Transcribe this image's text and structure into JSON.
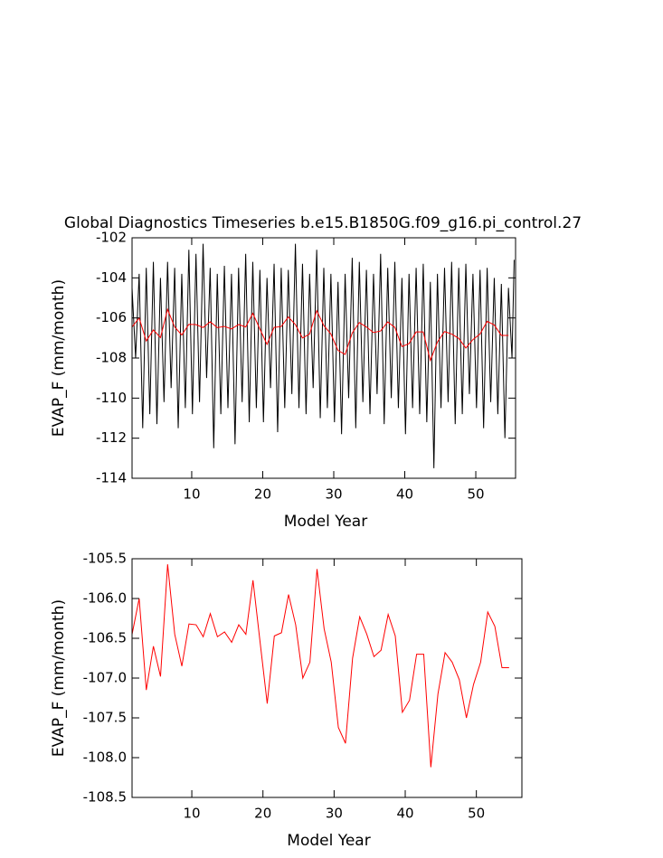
{
  "chart_data": [
    {
      "type": "line",
      "title": "Global Diagnostics Timeseries b.e15.B1850G.f09_g16.pi_control.27",
      "x_label": "Model Year",
      "y_label": "EVAP_F (mm/month)",
      "xlim": [
        1.6,
        55.6
      ],
      "ylim": [
        -114,
        -102
      ],
      "xticks": [
        10,
        20,
        30,
        40,
        50
      ],
      "yticks": [
        -114,
        -112,
        -110,
        -108,
        -106,
        -104,
        -102
      ],
      "series": [
        {
          "color": "#000000",
          "x": [
            1.6,
            2.1,
            2.6,
            3.1,
            3.6,
            4.1,
            4.6,
            5.1,
            5.6,
            6.1,
            6.6,
            7.1,
            7.6,
            8.1,
            8.6,
            9.1,
            9.6,
            10.1,
            10.6,
            11.1,
            11.6,
            12.1,
            12.6,
            13.1,
            13.6,
            14.1,
            14.6,
            15.1,
            15.6,
            16.1,
            16.6,
            17.1,
            17.6,
            18.1,
            18.6,
            19.1,
            19.6,
            20.1,
            20.6,
            21.1,
            21.6,
            22.1,
            22.6,
            23.1,
            23.6,
            24.1,
            24.6,
            25.1,
            25.6,
            26.1,
            26.6,
            27.1,
            27.6,
            28.1,
            28.6,
            29.1,
            29.6,
            30.1,
            30.6,
            31.1,
            31.6,
            32.1,
            32.6,
            33.1,
            33.6,
            34.1,
            34.6,
            35.1,
            35.6,
            36.1,
            36.6,
            37.1,
            37.6,
            38.1,
            38.6,
            39.1,
            39.6,
            40.1,
            40.6,
            41.1,
            41.6,
            42.1,
            42.6,
            43.1,
            43.6,
            44.1,
            44.6,
            45.1,
            45.6,
            46.1,
            46.6,
            47.1,
            47.6,
            48.1,
            48.6,
            49.1,
            49.6,
            50.1,
            50.6,
            51.1,
            51.6,
            52.1,
            52.6,
            53.1,
            53.6,
            54.1,
            54.6,
            55.1,
            55.4
          ],
          "values": [
            -104.5,
            -108,
            -103.8,
            -111.5,
            -103.5,
            -110.8,
            -103.2,
            -111.3,
            -104,
            -110.2,
            -103.2,
            -109.5,
            -103.5,
            -111.5,
            -103.8,
            -110.5,
            -102.6,
            -110.8,
            -102.8,
            -110.2,
            -102.3,
            -109,
            -103.5,
            -112.5,
            -103.8,
            -110.8,
            -103.4,
            -110.5,
            -103.8,
            -112.3,
            -103.5,
            -110.2,
            -102.8,
            -111.2,
            -103.2,
            -110.5,
            -103.6,
            -111.2,
            -104,
            -109.5,
            -103.3,
            -111.7,
            -103.5,
            -110.5,
            -103.6,
            -109.8,
            -102.3,
            -110.5,
            -103.3,
            -110.8,
            -103.8,
            -109.5,
            -102.6,
            -111,
            -103.5,
            -110.5,
            -103.8,
            -111.2,
            -104.2,
            -111.8,
            -103.8,
            -110,
            -103,
            -111.5,
            -103.2,
            -110.2,
            -103.6,
            -110.8,
            -103.8,
            -109.8,
            -102.8,
            -111.3,
            -103.5,
            -110,
            -103.2,
            -110.5,
            -104,
            -111.8,
            -103.8,
            -110.5,
            -103.5,
            -110.8,
            -103.3,
            -111.2,
            -104.2,
            -113.5,
            -103.8,
            -110.5,
            -103.5,
            -110.2,
            -103.2,
            -111.3,
            -103.5,
            -110.8,
            -103.3,
            -109.8,
            -103.8,
            -110.5,
            -103.6,
            -111.5,
            -103.5,
            -110.2,
            -104,
            -110.8,
            -104.3,
            -112,
            -104.5,
            -108,
            -103.1
          ]
        },
        {
          "color": "#ff0000",
          "x": [
            1.6,
            2.6,
            3.6,
            4.6,
            5.6,
            6.6,
            7.6,
            8.6,
            9.6,
            10.6,
            11.6,
            12.6,
            13.6,
            14.6,
            15.6,
            16.6,
            17.6,
            18.6,
            19.6,
            20.6,
            21.6,
            22.6,
            23.6,
            24.6,
            25.6,
            26.6,
            27.6,
            28.6,
            29.6,
            30.6,
            31.6,
            32.6,
            33.6,
            34.6,
            35.6,
            36.6,
            37.6,
            38.6,
            39.6,
            40.6,
            41.6,
            42.6,
            43.6,
            44.6,
            45.6,
            46.6,
            47.6,
            48.6,
            49.6,
            50.6,
            51.6,
            52.6,
            53.6,
            54.6
          ],
          "values": [
            -106.45,
            -106,
            -107.15,
            -106.6,
            -106.98,
            -105.57,
            -106.45,
            -106.85,
            -106.32,
            -106.33,
            -106.48,
            -106.19,
            -106.48,
            -106.42,
            -106.55,
            -106.33,
            -106.45,
            -105.77,
            -106.55,
            -107.32,
            -106.47,
            -106.43,
            -105.95,
            -106.33,
            -107,
            -106.8,
            -105.63,
            -106.38,
            -106.8,
            -107.62,
            -107.82,
            -106.75,
            -106.23,
            -106.45,
            -106.73,
            -106.65,
            -106.2,
            -106.47,
            -107.43,
            -107.28,
            -106.7,
            -106.7,
            -108.12,
            -107.2,
            -106.68,
            -106.8,
            -107.02,
            -107.5,
            -107.08,
            -106.8,
            -106.17,
            -106.35,
            -106.87,
            -106.87
          ]
        }
      ]
    },
    {
      "type": "line",
      "x_label": "Model Year",
      "y_label": "EVAP_F (mm/month)",
      "xlim": [
        1.6,
        56.4
      ],
      "ylim": [
        -108.5,
        -105.5
      ],
      "xticks": [
        10,
        20,
        30,
        40,
        50
      ],
      "yticks": [
        -108.5,
        {
          "value": -108,
          "label": "-108.0"
        },
        -107.5,
        {
          "value": -107,
          "label": "-107.0"
        },
        -106.5,
        {
          "value": -106,
          "label": "-106.0"
        },
        -105.5
      ],
      "series": [
        {
          "color": "#ff0000",
          "x": [
            1.6,
            2.6,
            3.6,
            4.6,
            5.6,
            6.6,
            7.6,
            8.6,
            9.6,
            10.6,
            11.6,
            12.6,
            13.6,
            14.6,
            15.6,
            16.6,
            17.6,
            18.6,
            19.6,
            20.6,
            21.6,
            22.6,
            23.6,
            24.6,
            25.6,
            26.6,
            27.6,
            28.6,
            29.6,
            30.6,
            31.6,
            32.6,
            33.6,
            34.6,
            35.6,
            36.6,
            37.6,
            38.6,
            39.6,
            40.6,
            41.6,
            42.6,
            43.6,
            44.6,
            45.6,
            46.6,
            47.6,
            48.6,
            49.6,
            50.6,
            51.6,
            52.6,
            53.6,
            54.6
          ],
          "values": [
            -106.45,
            -106,
            -107.15,
            -106.6,
            -106.98,
            -105.57,
            -106.45,
            -106.85,
            -106.32,
            -106.33,
            -106.48,
            -106.19,
            -106.48,
            -106.42,
            -106.55,
            -106.33,
            -106.45,
            -105.77,
            -106.55,
            -107.32,
            -106.47,
            -106.43,
            -105.95,
            -106.33,
            -107,
            -106.8,
            -105.63,
            -106.38,
            -106.8,
            -107.62,
            -107.82,
            -106.75,
            -106.23,
            -106.45,
            -106.73,
            -106.65,
            -106.2,
            -106.47,
            -107.43,
            -107.28,
            -106.7,
            -106.7,
            -108.12,
            -107.2,
            -106.68,
            -106.8,
            -107.02,
            -107.5,
            -107.08,
            -106.8,
            -106.17,
            -106.35,
            -106.87,
            -106.87
          ]
        }
      ]
    }
  ]
}
